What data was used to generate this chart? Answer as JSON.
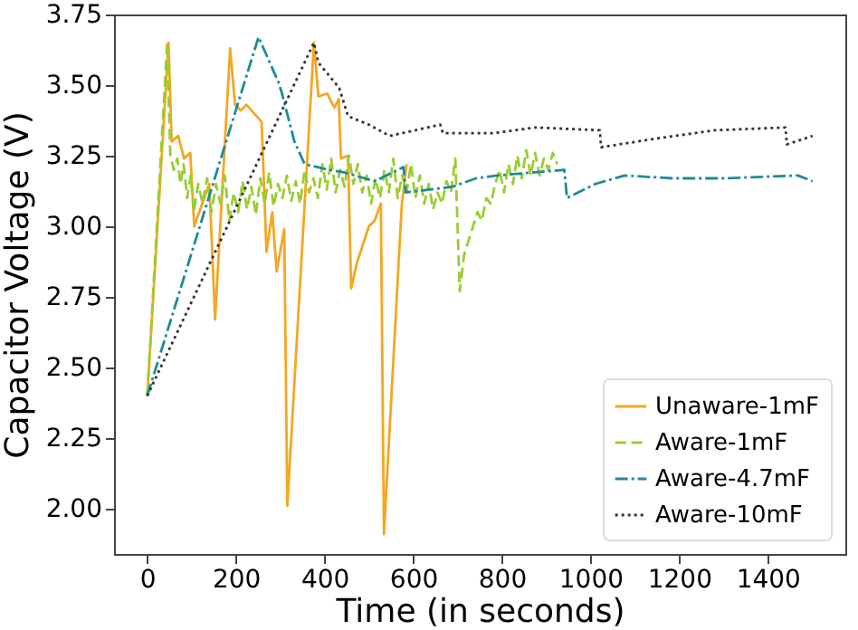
{
  "chart_data": {
    "type": "line",
    "xlabel": "Time (in seconds)",
    "ylabel": "Capacitor Voltage (V)",
    "xlim": [
      -75,
      1575
    ],
    "xticks": [
      0,
      200,
      400,
      600,
      800,
      1000,
      1200,
      1400
    ],
    "ylim": [
      1.84,
      3.75
    ],
    "yticks": [
      3.75,
      {
        "value": 3.5,
        "label": "3.50"
      },
      3.25,
      {
        "value": 3.0,
        "label": "3.00"
      },
      2.75,
      {
        "value": 2.5,
        "label": "2.50"
      },
      2.25,
      {
        "value": 2.0,
        "label": "2.00"
      }
    ],
    "legend": "bottom right",
    "grid": false,
    "series": [
      {
        "name": "Unaware-1mF",
        "color": "#f5a623",
        "line_style": "solid",
        "x": [
          0,
          48,
          55,
          70,
          83,
          97,
          106,
          124,
          140,
          153,
          187,
          198,
          211,
          224,
          258,
          269,
          282,
          292,
          309,
          316,
          376,
          386,
          406,
          422,
          432,
          437,
          453,
          460,
          473,
          500,
          513,
          527,
          534,
          574,
          585
        ],
        "values": [
          2.4,
          3.65,
          3.3,
          3.32,
          3.24,
          3.26,
          3.0,
          3.08,
          3.15,
          2.67,
          3.63,
          3.43,
          3.41,
          3.43,
          3.37,
          2.91,
          3.05,
          2.84,
          2.99,
          2.01,
          3.65,
          3.46,
          3.47,
          3.42,
          3.45,
          3.24,
          3.25,
          2.78,
          2.87,
          3.0,
          3.02,
          3.08,
          1.91,
          3.07,
          3.22
        ]
      },
      {
        "name": "Aware-1mF",
        "color": "#9acd32",
        "line_style": "dashed",
        "x": [
          0,
          45,
          52,
          60,
          68,
          75,
          82,
          90,
          98,
          105,
          115,
          125,
          135,
          145,
          155,
          165,
          175,
          185,
          195,
          205,
          215,
          225,
          235,
          245,
          255,
          265,
          275,
          285,
          295,
          305,
          315,
          325,
          335,
          345,
          355,
          365,
          375,
          385,
          395,
          405,
          415,
          425,
          435,
          445,
          455,
          465,
          475,
          485,
          495,
          505,
          515,
          525,
          535,
          545,
          555,
          565,
          575,
          585,
          595,
          605,
          615,
          625,
          635,
          645,
          655,
          665,
          675,
          685,
          695,
          705,
          715,
          725,
          735,
          745,
          755,
          765,
          775,
          785,
          795,
          805,
          815,
          825,
          835,
          845,
          855,
          865,
          875,
          885,
          895,
          905,
          915,
          925
        ],
        "values": [
          2.4,
          3.65,
          3.25,
          3.2,
          3.24,
          3.15,
          3.22,
          3.1,
          3.18,
          3.05,
          3.15,
          3.08,
          3.17,
          3.05,
          3.15,
          3.08,
          3.18,
          3.02,
          3.12,
          3.05,
          3.16,
          3.06,
          3.14,
          3.04,
          3.17,
          3.08,
          3.19,
          3.07,
          3.15,
          3.1,
          3.18,
          3.09,
          3.16,
          3.08,
          3.2,
          3.12,
          3.17,
          3.1,
          3.22,
          3.13,
          3.24,
          3.12,
          3.2,
          3.14,
          3.25,
          3.15,
          3.22,
          3.12,
          3.18,
          3.08,
          3.17,
          3.1,
          3.2,
          3.12,
          3.24,
          3.1,
          3.18,
          3.12,
          3.22,
          3.1,
          3.18,
          3.08,
          3.15,
          3.06,
          3.12,
          3.08,
          3.16,
          3.12,
          3.24,
          2.77,
          2.9,
          2.95,
          3.0,
          3.05,
          3.02,
          3.1,
          3.08,
          3.15,
          3.2,
          3.12,
          3.22,
          3.15,
          3.25,
          3.17,
          3.27,
          3.18,
          3.26,
          3.18,
          3.24,
          3.2,
          3.26,
          3.22
        ]
      },
      {
        "name": "Aware-4.7mF",
        "color": "#1f8a9a",
        "line_style": "dashdot",
        "x": [
          0,
          251,
          296,
          304,
          332,
          355,
          411,
          446,
          513,
          578,
          583,
          688,
          742,
          789,
          941,
          947,
          1011,
          1077,
          1185,
          1306,
          1468,
          1501
        ],
        "values": [
          2.4,
          3.67,
          3.51,
          3.47,
          3.3,
          3.22,
          3.2,
          3.19,
          3.16,
          3.21,
          3.12,
          3.14,
          3.17,
          3.18,
          3.2,
          3.1,
          3.15,
          3.18,
          3.17,
          3.17,
          3.18,
          3.16
        ]
      },
      {
        "name": "Aware-10mF",
        "color": "#333333",
        "line_style": "dotted",
        "x": [
          0,
          376,
          386,
          433,
          453,
          500,
          547,
          661,
          667,
          742,
          782,
          876,
          1021,
          1024,
          1145,
          1280,
          1440,
          1443,
          1501
        ],
        "values": [
          2.4,
          3.65,
          3.58,
          3.49,
          3.39,
          3.36,
          3.32,
          3.36,
          3.33,
          3.33,
          3.33,
          3.35,
          3.34,
          3.28,
          3.31,
          3.34,
          3.35,
          3.29,
          3.32
        ]
      }
    ]
  }
}
